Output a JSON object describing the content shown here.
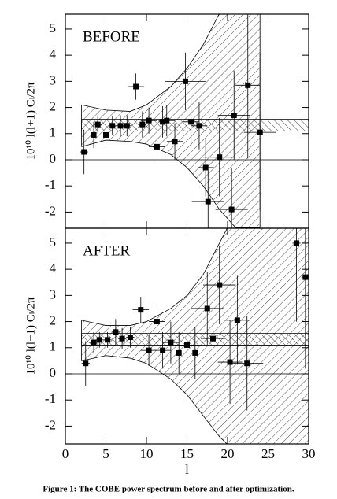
{
  "caption": "Figure 1: The COBE power spectrum before and after optimization.",
  "chart_data": [
    {
      "type": "scatter",
      "label": "BEFORE",
      "ylabel": "10¹⁰ l(l+1) Cₗ/2π",
      "xlim": [
        0,
        30
      ],
      "ylim": [
        -2.62,
        5.57
      ],
      "xticks": [
        0,
        5,
        10,
        15,
        20,
        25,
        30
      ],
      "yticks": [
        -2,
        -1,
        0,
        1,
        2,
        3,
        4,
        5
      ],
      "hline": 0,
      "x": [
        2.3,
        3.5,
        4,
        5,
        5.8,
        6.8,
        7.6,
        8.7,
        9.5,
        10.3,
        11.3,
        12,
        12.5,
        13.5,
        14.8,
        15.5,
        16.5,
        17.3,
        17.6,
        19,
        20.5,
        20.8,
        22.5,
        24
      ],
      "values": [
        0.3,
        0.95,
        1.35,
        0.95,
        1.3,
        1.3,
        1.3,
        2.8,
        1.35,
        1.5,
        0.5,
        1.45,
        1.5,
        0.7,
        3.0,
        1.45,
        1.3,
        -0.3,
        -1.6,
        0.1,
        -1.9,
        1.7,
        2.85,
        1.05
      ],
      "yerr": [
        0.85,
        0.5,
        0.35,
        0.45,
        0.35,
        0.4,
        0.4,
        0.5,
        0.5,
        0.5,
        0.6,
        0.6,
        0.6,
        0.7,
        1.1,
        0.9,
        0.9,
        1.1,
        1.2,
        1.5,
        1.6,
        1.7,
        2.8,
        3.0
      ],
      "xerr": [
        0.5,
        0.5,
        0.5,
        0.5,
        0.5,
        0.5,
        0.5,
        1,
        0.5,
        1,
        1,
        0.5,
        1,
        1,
        2.5,
        1,
        1,
        1,
        2,
        2,
        2,
        2,
        1.5,
        2
      ],
      "bands": [
        {
          "x": [
            2,
            5,
            8,
            10,
            13,
            15,
            17,
            19,
            21,
            24
          ],
          "upper": [
            2.1,
            1.9,
            1.85,
            2.1,
            2.8,
            3.5,
            4.4,
            5.6,
            5.6,
            5.6
          ],
          "lower": [
            0.5,
            0.75,
            0.7,
            0.6,
            0.2,
            -0.3,
            -1.0,
            -1.9,
            -2.6,
            -2.6
          ]
        },
        {
          "x": [
            2,
            30
          ],
          "upper": [
            1.55,
            1.55
          ],
          "lower": [
            1.1,
            1.1
          ]
        }
      ]
    },
    {
      "type": "scatter",
      "label": "AFTER",
      "ylabel": "10¹⁰ l(l+1) Cₗ/2π",
      "xlabel": "l",
      "xlim": [
        0,
        30
      ],
      "ylim": [
        -2.68,
        5.57
      ],
      "xticks": [
        0,
        5,
        10,
        15,
        20,
        25,
        30
      ],
      "yticks": [
        -2,
        -1,
        0,
        1,
        2,
        3,
        4,
        5
      ],
      "hline": 0,
      "x": [
        2.5,
        3.5,
        4.2,
        5.2,
        6.2,
        7,
        8,
        9.3,
        10.3,
        11.3,
        12,
        13,
        14,
        15,
        16,
        17.5,
        18.2,
        19,
        20.3,
        21.2,
        22.4,
        28.5,
        29.6
      ],
      "values": [
        0.4,
        1.2,
        1.3,
        1.3,
        1.6,
        1.35,
        1.4,
        2.45,
        0.9,
        2.0,
        0.9,
        1.2,
        0.8,
        1.1,
        0.8,
        2.5,
        1.35,
        3.4,
        0.45,
        2.05,
        0.4,
        5.0,
        3.7
      ],
      "yerr": [
        0.85,
        0.4,
        0.3,
        0.3,
        0.5,
        0.4,
        0.4,
        0.5,
        0.6,
        0.6,
        0.7,
        0.8,
        0.8,
        0.9,
        1.0,
        1.4,
        1.2,
        1.5,
        1.6,
        1.7,
        1.8,
        3.0,
        3.5
      ],
      "xerr": [
        0.5,
        0.5,
        0.5,
        0.5,
        0.5,
        0.5,
        0.5,
        1,
        1,
        1,
        1,
        1,
        1,
        1.5,
        1.5,
        2,
        1.5,
        2,
        1.5,
        1.5,
        2,
        0.5,
        0.5
      ],
      "bands": [
        {
          "x": [
            2,
            5,
            8,
            10,
            13,
            15,
            17,
            19,
            20,
            30
          ],
          "upper": [
            2.05,
            1.85,
            1.85,
            2.0,
            2.5,
            3.0,
            3.8,
            5.0,
            5.6,
            5.6
          ],
          "lower": [
            0.5,
            0.7,
            0.6,
            0.4,
            -0.2,
            -0.8,
            -1.6,
            -2.4,
            -2.7,
            -2.7
          ]
        },
        {
          "x": [
            2,
            30
          ],
          "upper": [
            1.55,
            1.55
          ],
          "lower": [
            1.1,
            1.1
          ]
        }
      ]
    }
  ]
}
